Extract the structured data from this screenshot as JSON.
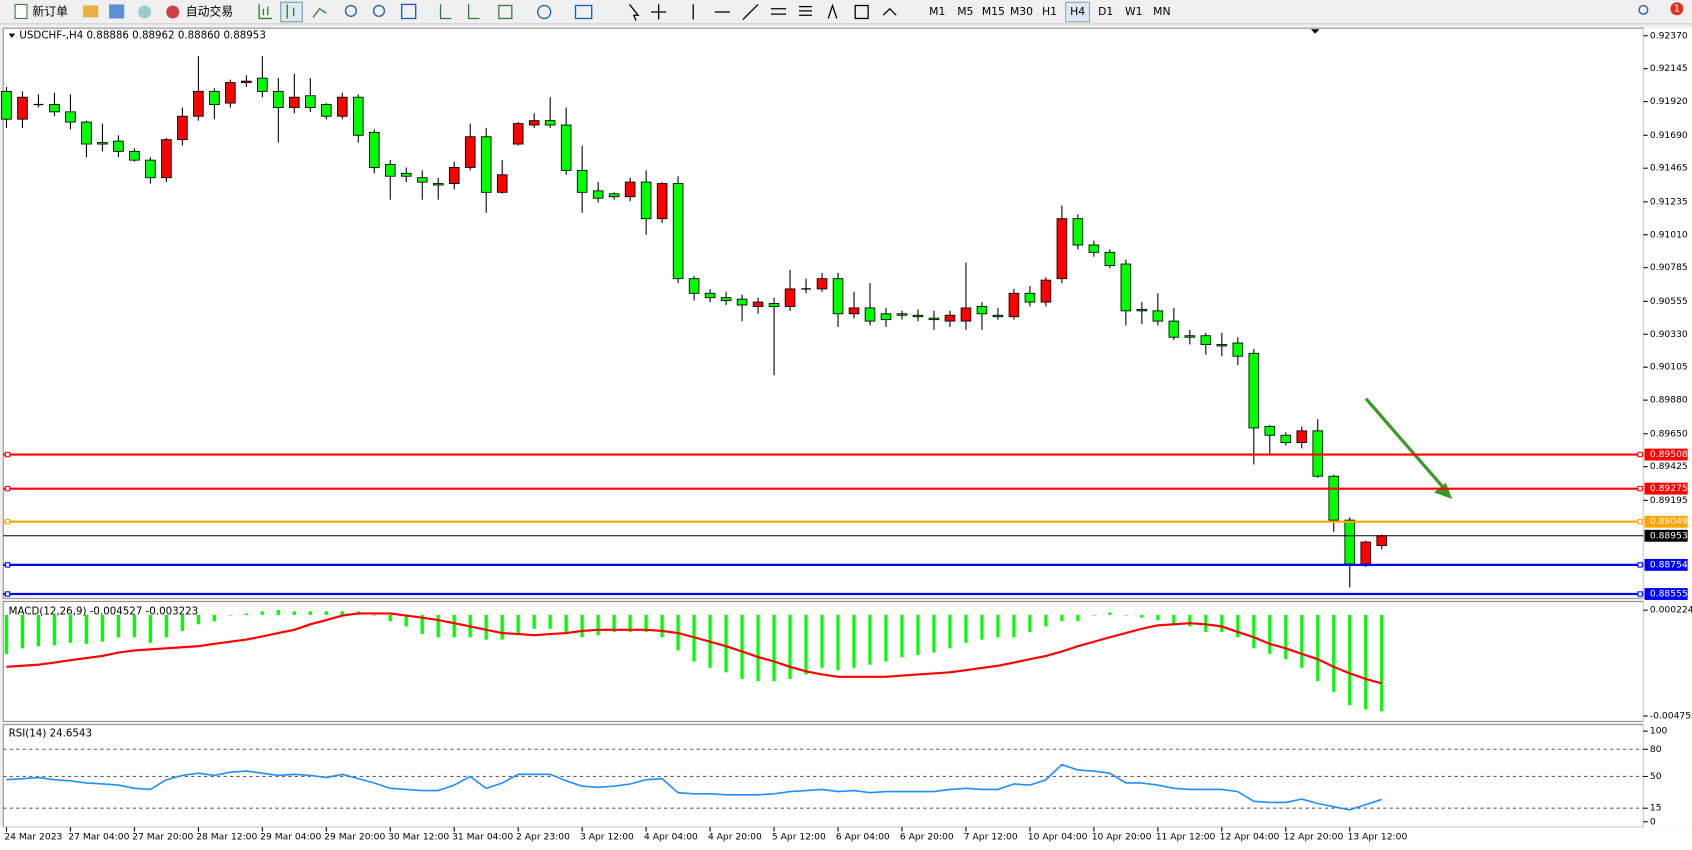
{
  "toolbar": {
    "new_order": "新订单",
    "auto_trading": "自动交易",
    "timeframes": [
      "M1",
      "M5",
      "M15",
      "M30",
      "H1",
      "H4",
      "D1",
      "W1",
      "MN"
    ],
    "active_timeframe": "H4",
    "notification_count": "1"
  },
  "chart_data": [
    {
      "type": "candlestick",
      "title": "USDCHF-,H4 0.88886 0.88962 0.88860 0.88953",
      "categories": [
        "24 Mar 2023",
        null,
        null,
        null,
        "27 Mar 04:00",
        null,
        null,
        null,
        "27 Mar 20:00",
        null,
        null,
        null,
        "28 Mar 12:00",
        null,
        null,
        null,
        "29 Mar 04:00",
        null,
        null,
        null,
        "29 Mar 20:00",
        null,
        null,
        null,
        "30 Mar 12:00",
        null,
        null,
        null,
        "31 Mar 04:00",
        null,
        null,
        null,
        "2 Apr 23:00",
        null,
        null,
        null,
        "3 Apr 12:00",
        null,
        null,
        null,
        "4 Apr 04:00",
        null,
        null,
        null,
        "4 Apr 20:00",
        null,
        null,
        null,
        "5 Apr 12:00",
        null,
        null,
        null,
        "6 Apr 04:00",
        null,
        null,
        null,
        "6 Apr 20:00",
        null,
        null,
        null,
        "7 Apr 12:00",
        null,
        null,
        null,
        "10 Apr 04:00",
        null,
        null,
        null,
        "10 Apr 20:00",
        null,
        null,
        null,
        "11 Apr 12:00",
        null,
        null,
        null,
        "12 Apr 04:00",
        null,
        null,
        null,
        "12 Apr 20:00",
        null,
        null,
        null,
        "13 Apr 12:00",
        null,
        null
      ],
      "open": [
        0.9199,
        0.918,
        0.919,
        0.919,
        0.9185,
        0.9178,
        0.9164,
        0.9165,
        0.9158,
        0.9152,
        0.914,
        0.9166,
        0.9182,
        0.9199,
        0.9191,
        0.9205,
        0.9208,
        0.9199,
        0.9188,
        0.9196,
        0.919,
        0.9182,
        0.9195,
        0.9171,
        0.9149,
        0.9143,
        0.914,
        0.9136,
        0.9136,
        0.9147,
        0.9168,
        0.913,
        0.9163,
        0.9176,
        0.9179,
        0.9176,
        0.9145,
        0.9131,
        0.9129,
        0.9127,
        0.9137,
        0.9112,
        0.9136,
        0.9071,
        0.9061,
        0.9058,
        0.9057,
        0.9052,
        0.9054,
        0.9052,
        0.9064,
        0.9064,
        0.9071,
        0.9047,
        0.9051,
        0.9047,
        0.9047,
        0.9046,
        0.9044,
        0.9042,
        0.9042,
        0.9052,
        0.9046,
        0.9045,
        0.9061,
        0.9055,
        0.9071,
        0.9112,
        0.9094,
        0.9089,
        0.9081,
        0.905,
        0.9049,
        0.9042,
        0.9032,
        0.9032,
        0.9026,
        0.9027,
        0.902,
        0.897,
        0.8964,
        0.8959,
        0.8967,
        0.8936,
        0.8906,
        0.8876,
        0.88886
      ],
      "high": [
        0.9202,
        0.9199,
        0.9197,
        0.9198,
        0.9197,
        0.9179,
        0.9177,
        0.9169,
        0.916,
        0.9154,
        0.9167,
        0.9188,
        0.9223,
        0.9201,
        0.9207,
        0.921,
        0.9223,
        0.9208,
        0.9211,
        0.9208,
        0.9191,
        0.9198,
        0.9197,
        0.9173,
        0.9152,
        0.9147,
        0.9145,
        0.914,
        0.9151,
        0.9177,
        0.9174,
        0.9152,
        0.9178,
        0.9184,
        0.9195,
        0.9188,
        0.9162,
        0.9137,
        0.913,
        0.914,
        0.9145,
        0.9137,
        0.9141,
        0.9073,
        0.9064,
        0.9062,
        0.906,
        0.9058,
        0.9058,
        0.9077,
        0.9071,
        0.9075,
        0.9075,
        0.9062,
        0.9068,
        0.9051,
        0.9049,
        0.905,
        0.9049,
        0.9049,
        0.9082,
        0.9055,
        0.9051,
        0.9064,
        0.9066,
        0.9072,
        0.9121,
        0.9115,
        0.9097,
        0.9091,
        0.9084,
        0.9055,
        0.9061,
        0.9051,
        0.9036,
        0.9034,
        0.9034,
        0.9031,
        0.9023,
        0.8971,
        0.8966,
        0.897,
        0.8975,
        0.8937,
        0.8908,
        0.8892,
        0.88962
      ],
      "low": [
        0.9174,
        0.9174,
        0.9188,
        0.9182,
        0.9173,
        0.9154,
        0.9158,
        0.9154,
        0.9151,
        0.9136,
        0.9137,
        0.9162,
        0.9179,
        0.918,
        0.9188,
        0.9202,
        0.9195,
        0.9164,
        0.9184,
        0.9185,
        0.918,
        0.918,
        0.9164,
        0.9143,
        0.9125,
        0.9137,
        0.9125,
        0.9125,
        0.9132,
        0.9145,
        0.9116,
        0.9129,
        0.9162,
        0.9174,
        0.9174,
        0.9142,
        0.9116,
        0.9123,
        0.9125,
        0.9124,
        0.9101,
        0.9109,
        0.9068,
        0.9056,
        0.9055,
        0.9053,
        0.9042,
        0.9047,
        0.9005,
        0.9049,
        0.9061,
        0.9062,
        0.9038,
        0.9044,
        0.9039,
        0.9038,
        0.9043,
        0.9042,
        0.9036,
        0.9038,
        0.9036,
        0.9036,
        0.9043,
        0.9043,
        0.9052,
        0.9052,
        0.9068,
        0.9091,
        0.9086,
        0.9078,
        0.9039,
        0.904,
        0.9039,
        0.9029,
        0.9026,
        0.9019,
        0.9018,
        0.9012,
        0.8944,
        0.8951,
        0.8957,
        0.8955,
        0.8935,
        0.8898,
        0.886,
        0.8874,
        0.8886
      ],
      "close": [
        0.918,
        0.9195,
        0.919,
        0.9185,
        0.9178,
        0.9163,
        0.9163,
        0.9158,
        0.9152,
        0.914,
        0.9166,
        0.9182,
        0.9199,
        0.919,
        0.9205,
        0.9206,
        0.9199,
        0.9188,
        0.9195,
        0.9188,
        0.9182,
        0.9195,
        0.9169,
        0.9147,
        0.9141,
        0.9141,
        0.9137,
        0.9135,
        0.9147,
        0.9168,
        0.913,
        0.9142,
        0.9177,
        0.9179,
        0.9176,
        0.9145,
        0.913,
        0.9126,
        0.9127,
        0.9137,
        0.9112,
        0.9136,
        0.9071,
        0.9061,
        0.9058,
        0.9056,
        0.9053,
        0.9055,
        0.9052,
        0.9064,
        0.9064,
        0.9071,
        0.9047,
        0.9051,
        0.9042,
        0.9043,
        0.9046,
        0.9045,
        0.9043,
        0.9046,
        0.9051,
        0.9047,
        0.9045,
        0.9061,
        0.9055,
        0.907,
        0.9112,
        0.9094,
        0.9089,
        0.908,
        0.9049,
        0.9049,
        0.9042,
        0.9031,
        0.9031,
        0.9026,
        0.9025,
        0.9018,
        0.8969,
        0.8964,
        0.8959,
        0.8967,
        0.8936,
        0.8906,
        0.8876,
        0.8891,
        0.88953
      ],
      "up_color": "#ff0000",
      "down_color": "#00ff00",
      "ylim": [
        0.88533,
        0.92407
      ],
      "yticks": [
        {
          "value": 0.9237,
          "label": "0.92370"
        },
        0.92145,
        {
          "value": 0.9192,
          "label": "0.91920"
        },
        {
          "value": 0.9169,
          "label": "0.91690"
        },
        0.91465,
        0.91235,
        {
          "value": 0.9101,
          "label": "0.91010"
        },
        0.90785,
        0.90555,
        {
          "value": 0.9033,
          "label": "0.90330"
        },
        0.90105,
        {
          "value": 0.8988,
          "label": "0.89880"
        },
        {
          "value": 0.8965,
          "label": "0.89650"
        },
        0.89425,
        0.89195
      ],
      "hlines": [
        {
          "value": 0.89508,
          "color": "#ff0000"
        },
        {
          "value": 0.89275,
          "color": "#ff0000"
        },
        {
          "value": 0.89049,
          "color": "#ffa500"
        },
        {
          "value": 0.88953,
          "color": "#000000"
        },
        {
          "value": 0.88754,
          "color": "#0000ff"
        },
        {
          "value": 0.88555,
          "color": "#0000ff"
        }
      ]
    },
    {
      "type": "macd",
      "title": "MACD(12,26,9) -0.004527 -0.003223",
      "histogram": {
        "color": "#00ff00",
        "values": [
          -0.00183,
          -0.00157,
          -0.00147,
          -0.00142,
          -0.00131,
          -0.00136,
          -0.00126,
          -0.00105,
          -0.00105,
          -0.00131,
          -0.00105,
          -0.00075,
          -0.00044,
          -0.00029,
          -3e-05,
          7e-05,
          0.00017,
          0.00023,
          0.00017,
          0.00017,
          0.00017,
          0.00017,
          0.00017,
          -3e-05,
          -0.00029,
          -0.00054,
          -0.0009,
          -0.00105,
          -0.00105,
          -0.00105,
          -0.00116,
          -0.00116,
          -0.0009,
          -0.00065,
          -0.00065,
          -0.0008,
          -0.00105,
          -0.00095,
          -0.0008,
          -0.0008,
          -0.0008,
          -0.00105,
          -0.00167,
          -0.00219,
          -0.00249,
          -0.0027,
          -0.00301,
          -0.00311,
          -0.00311,
          -0.00301,
          -0.0028,
          -0.00249,
          -0.0026,
          -0.00249,
          -0.00234,
          -0.00219,
          -0.00198,
          -0.00188,
          -0.00177,
          -0.00157,
          -0.00131,
          -0.00116,
          -0.00105,
          -0.00105,
          -0.0008,
          -0.00054,
          -0.00029,
          -0.00029,
          -3e-05,
          0.00012,
          -3e-05,
          -0.00013,
          -0.00024,
          -0.00044,
          -0.00054,
          -0.0008,
          -0.0008,
          -0.00105,
          -0.00157,
          -0.00183,
          -0.00208,
          -0.00249,
          -0.00311,
          -0.00362,
          -0.00425,
          -0.00445,
          -0.004527
        ]
      },
      "signal": {
        "color": "#ff0000",
        "values": [
          -0.00244,
          -0.00239,
          -0.00234,
          -0.00224,
          -0.00213,
          -0.00203,
          -0.00193,
          -0.00177,
          -0.00167,
          -0.00162,
          -0.00157,
          -0.00152,
          -0.00147,
          -0.00136,
          -0.00126,
          -0.00116,
          -0.00101,
          -0.00085,
          -0.0007,
          -0.00044,
          -0.00024,
          -3e-05,
          7e-05,
          7e-05,
          7e-05,
          -3e-05,
          -0.00013,
          -0.00024,
          -0.00039,
          -0.00054,
          -0.0007,
          -0.00085,
          -0.0009,
          -0.00095,
          -0.0009,
          -0.00085,
          -0.00075,
          -0.0007,
          -0.0007,
          -0.0007,
          -0.0007,
          -0.00075,
          -0.00085,
          -0.00105,
          -0.00126,
          -0.00147,
          -0.00172,
          -0.00198,
          -0.00219,
          -0.00244,
          -0.00265,
          -0.0028,
          -0.00291,
          -0.00291,
          -0.00291,
          -0.00291,
          -0.00285,
          -0.0028,
          -0.00275,
          -0.0027,
          -0.0026,
          -0.00249,
          -0.00239,
          -0.00224,
          -0.00208,
          -0.00193,
          -0.00172,
          -0.00147,
          -0.00126,
          -0.00105,
          -0.00085,
          -0.00065,
          -0.00049,
          -0.00044,
          -0.00039,
          -0.00044,
          -0.00054,
          -0.0008,
          -0.00105,
          -0.00136,
          -0.00157,
          -0.00183,
          -0.00208,
          -0.00244,
          -0.00275,
          -0.00301,
          -0.003223
        ]
      },
      "ylim": [
        -0.004753,
        0.000224
      ],
      "yticks": [
        0.000224,
        -0.004753
      ]
    },
    {
      "type": "line",
      "title": "RSI(14) 24.6543",
      "series": [
        {
          "color": "#1e90ff",
          "values": [
            46.4,
            47.6,
            48.8,
            46.4,
            45.2,
            42.8,
            41.7,
            40.5,
            36.9,
            35.7,
            46.4,
            51.2,
            53.6,
            51.2,
            54.7,
            55.9,
            53.6,
            51.2,
            52.4,
            51.2,
            48.8,
            52.4,
            47.6,
            42.8,
            36.9,
            35.7,
            34.5,
            34.5,
            40.5,
            50,
            36.9,
            42.8,
            52.4,
            52.4,
            52.4,
            45.2,
            39.3,
            38.1,
            39.3,
            41.7,
            46.4,
            47.6,
            32.1,
            30.9,
            30.9,
            29.8,
            29.8,
            29.8,
            30.9,
            33.3,
            34.5,
            35.7,
            33.3,
            34.5,
            32.1,
            33.3,
            33.3,
            33.3,
            33.3,
            35.7,
            36.9,
            35.7,
            35.7,
            41.7,
            40.5,
            46.4,
            63.1,
            57.1,
            55.9,
            53.6,
            42.8,
            42.8,
            40.5,
            36.9,
            35.7,
            35.7,
            35.7,
            33.3,
            22.6,
            21.4,
            21.4,
            25,
            20.2,
            16.7,
            13.1,
            19,
            24.6543
          ]
        }
      ],
      "ylim": [
        0,
        100
      ],
      "yticks": [
        100,
        80,
        50,
        15,
        0
      ],
      "levels": [
        80,
        50,
        15
      ]
    }
  ]
}
